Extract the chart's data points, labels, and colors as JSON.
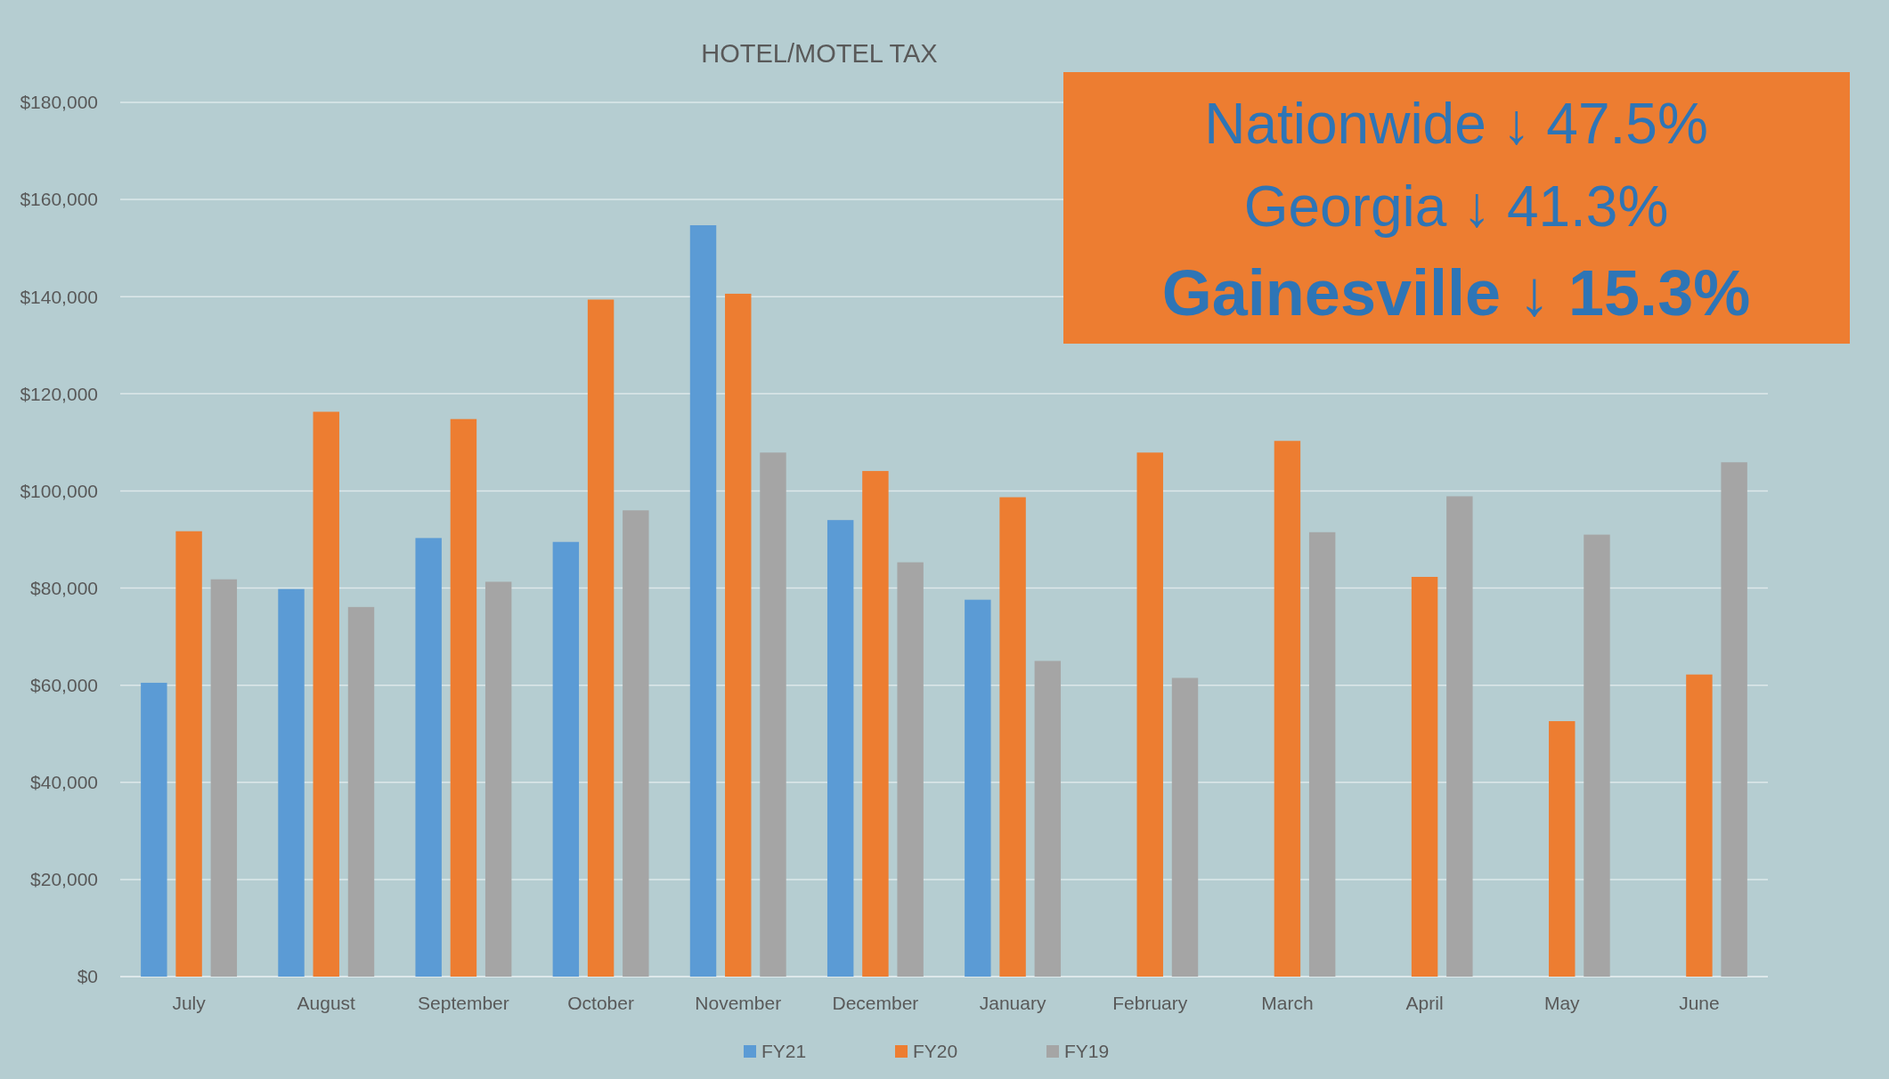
{
  "chart_data": {
    "type": "bar",
    "title": "HOTEL/MOTEL TAX",
    "categories": [
      "July",
      "August",
      "September",
      "October",
      "November",
      "December",
      "January",
      "February",
      "March",
      "April",
      "May",
      "June"
    ],
    "series": [
      {
        "name": "FY21",
        "color": "#5b9bd5",
        "values": [
          60500,
          79800,
          90300,
          89500,
          154700,
          94000,
          77600,
          null,
          null,
          null,
          null,
          null
        ]
      },
      {
        "name": "FY20",
        "color": "#ed7d31",
        "values": [
          91700,
          116300,
          114800,
          139400,
          140600,
          104100,
          98700,
          107900,
          110300,
          82300,
          52600,
          62200
        ]
      },
      {
        "name": "FY19",
        "color": "#a5a5a5",
        "values": [
          81800,
          76100,
          81300,
          96000,
          107900,
          85300,
          65000,
          61500,
          91500,
          98900,
          91000,
          105900
        ]
      }
    ],
    "ylim": [
      0,
      180000
    ],
    "yticks": [
      {
        "value": 0,
        "label": "$0"
      },
      {
        "value": 20000,
        "label": "$20,000"
      },
      {
        "value": 40000,
        "label": "$40,000"
      },
      {
        "value": 60000,
        "label": "$60,000"
      },
      {
        "value": 80000,
        "label": "$80,000"
      },
      {
        "value": 100000,
        "label": "$100,000"
      },
      {
        "value": 120000,
        "label": "$120,000"
      },
      {
        "value": 140000,
        "label": "$140,000"
      },
      {
        "value": 160000,
        "label": "$160,000"
      },
      {
        "value": 180000,
        "label": "$180,000"
      }
    ],
    "grid": "y",
    "legend": "bottom",
    "annotations": [
      "Nationwide ↓ 47.5%",
      "Georgia ↓ 41.3%",
      "Gainesville ↓ 15.3%"
    ]
  }
}
